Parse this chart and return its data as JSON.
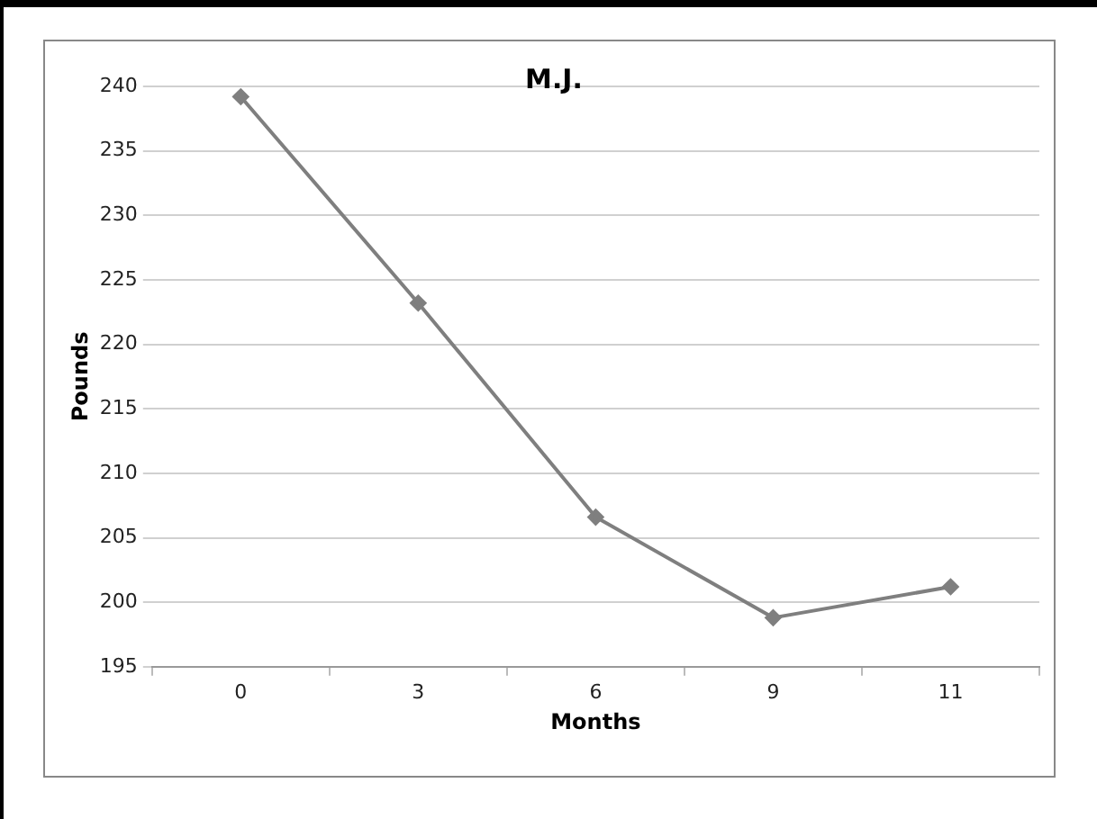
{
  "chart_data": {
    "type": "line",
    "title": "M.J.",
    "xlabel": "Months",
    "ylabel": "Pounds",
    "categories": [
      "0",
      "3",
      "6",
      "9",
      "11"
    ],
    "series": [
      {
        "color": "#7f7f7f",
        "values": [
          239.2,
          223.2,
          206.6,
          198.8,
          201.2
        ]
      }
    ],
    "ylim": [
      195,
      240
    ],
    "yticks": [
      195,
      200,
      205,
      210,
      215,
      220,
      225,
      230,
      235,
      240
    ],
    "grid": "y",
    "legend": false,
    "marker": "diamond",
    "line_style": "solid"
  }
}
